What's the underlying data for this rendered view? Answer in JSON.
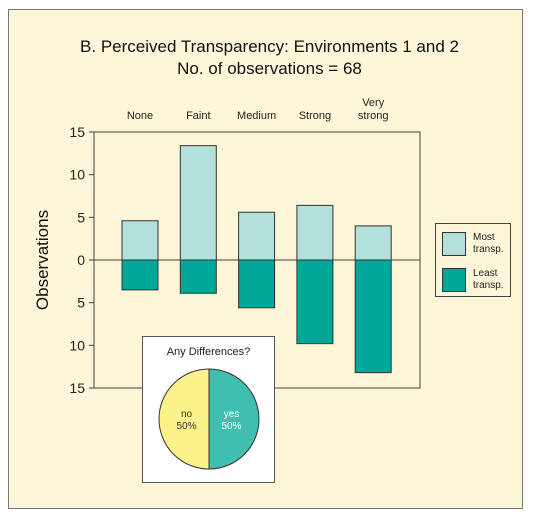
{
  "chart_data": {
    "type": "bar",
    "title": "B. Perceived Transparency: Environments 1 and 2",
    "subtitle": "No. of observations = 68",
    "categories": [
      "None",
      "Faint",
      "Medium",
      "Strong",
      "Very strong"
    ],
    "category_labels": [
      [
        "None"
      ],
      [
        "Faint"
      ],
      [
        "Medium"
      ],
      [
        "Strong"
      ],
      [
        "Very",
        "strong"
      ]
    ],
    "ylabel": "Observations",
    "yticks": [
      "15",
      "10",
      "5",
      "0",
      "5",
      "10",
      "15"
    ],
    "ylim": [
      -15,
      15
    ],
    "grid": false,
    "legend_position": "right",
    "series": [
      {
        "name": "Most transp.",
        "label_lines": [
          "Most",
          "transp."
        ],
        "color": "#b3e0da",
        "values": [
          4.6,
          13.4,
          5.6,
          6.4,
          4.0
        ]
      },
      {
        "name": "Least transp.",
        "label_lines": [
          "Least",
          "transp."
        ],
        "color": "#00a89a",
        "values": [
          3.5,
          3.9,
          5.6,
          9.8,
          13.2
        ]
      }
    ]
  },
  "inset": {
    "title": "Any Differences?",
    "type": "pie",
    "slices": [
      {
        "label": "no",
        "pct": "50%",
        "value": 50,
        "color": "#fbf38a"
      },
      {
        "label": "yes",
        "pct": "50%",
        "value": 50,
        "color": "#40bfb0"
      }
    ]
  }
}
